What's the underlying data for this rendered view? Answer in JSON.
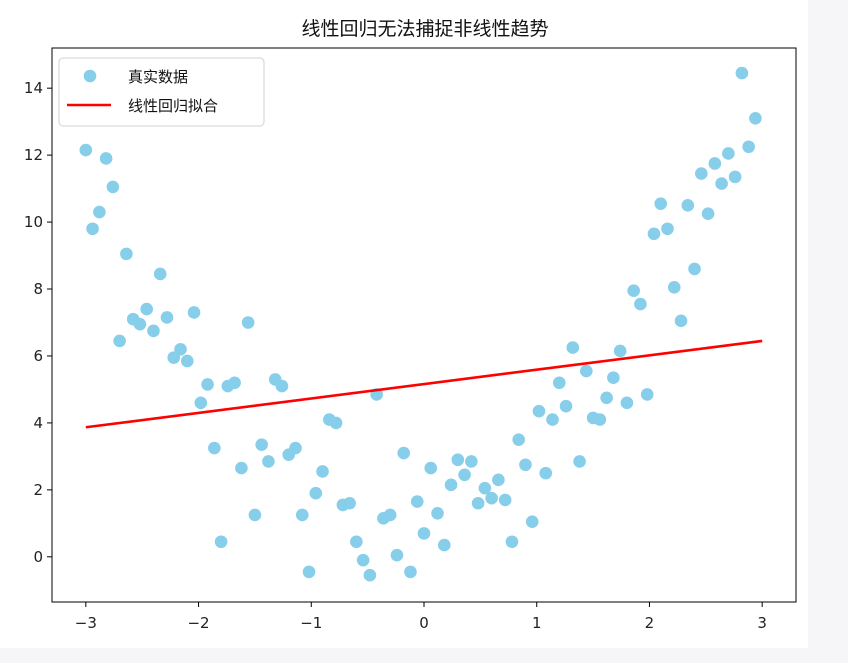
{
  "chart_data": {
    "type": "scatter",
    "title": "线性回归无法捕捉非线性趋势",
    "xlabel": "",
    "ylabel": "",
    "xlim": [
      -3.3,
      3.3
    ],
    "ylim": [
      -1.35,
      15.2
    ],
    "xticks": [
      -3,
      -2,
      -1,
      0,
      1,
      2,
      3
    ],
    "yticks": [
      0,
      2,
      4,
      6,
      8,
      10,
      12,
      14
    ],
    "grid": false,
    "legend_position": "top-left",
    "colors": {
      "points": "#87ceeb",
      "line": "#ff0000"
    },
    "series": [
      {
        "name": "真实数据",
        "kind": "scatter",
        "points": [
          [
            -3.0,
            12.15
          ],
          [
            -2.94,
            9.8
          ],
          [
            -2.88,
            10.3
          ],
          [
            -2.82,
            11.9
          ],
          [
            -2.76,
            11.05
          ],
          [
            -2.7,
            6.45
          ],
          [
            -2.64,
            9.05
          ],
          [
            -2.58,
            7.1
          ],
          [
            -2.52,
            6.95
          ],
          [
            -2.46,
            7.4
          ],
          [
            -2.4,
            6.75
          ],
          [
            -2.34,
            8.45
          ],
          [
            -2.28,
            7.15
          ],
          [
            -2.22,
            5.95
          ],
          [
            -2.16,
            6.2
          ],
          [
            -2.1,
            5.85
          ],
          [
            -2.04,
            7.3
          ],
          [
            -1.98,
            4.6
          ],
          [
            -1.92,
            5.15
          ],
          [
            -1.86,
            3.25
          ],
          [
            -1.8,
            0.45
          ],
          [
            -1.74,
            5.1
          ],
          [
            -1.68,
            5.2
          ],
          [
            -1.62,
            2.65
          ],
          [
            -1.56,
            7.0
          ],
          [
            -1.5,
            1.25
          ],
          [
            -1.44,
            3.35
          ],
          [
            -1.38,
            2.85
          ],
          [
            -1.32,
            5.3
          ],
          [
            -1.26,
            5.1
          ],
          [
            -1.2,
            3.05
          ],
          [
            -1.14,
            3.25
          ],
          [
            -1.08,
            1.25
          ],
          [
            -1.02,
            -0.45
          ],
          [
            -0.96,
            1.9
          ],
          [
            -0.9,
            2.55
          ],
          [
            -0.84,
            4.1
          ],
          [
            -0.78,
            4.0
          ],
          [
            -0.72,
            1.55
          ],
          [
            -0.66,
            1.6
          ],
          [
            -0.6,
            0.45
          ],
          [
            -0.54,
            -0.1
          ],
          [
            -0.48,
            -0.55
          ],
          [
            -0.42,
            4.85
          ],
          [
            -0.36,
            1.15
          ],
          [
            -0.3,
            1.25
          ],
          [
            -0.24,
            0.05
          ],
          [
            -0.18,
            3.1
          ],
          [
            -0.12,
            -0.45
          ],
          [
            -0.06,
            1.65
          ],
          [
            0.0,
            0.7
          ],
          [
            0.06,
            2.65
          ],
          [
            0.12,
            1.3
          ],
          [
            0.18,
            0.35
          ],
          [
            0.24,
            2.15
          ],
          [
            0.3,
            2.9
          ],
          [
            0.36,
            2.45
          ],
          [
            0.42,
            2.85
          ],
          [
            0.48,
            1.6
          ],
          [
            0.54,
            2.05
          ],
          [
            0.6,
            1.75
          ],
          [
            0.66,
            2.3
          ],
          [
            0.72,
            1.7
          ],
          [
            0.78,
            0.45
          ],
          [
            0.84,
            3.5
          ],
          [
            0.9,
            2.75
          ],
          [
            0.96,
            1.05
          ],
          [
            1.02,
            4.35
          ],
          [
            1.08,
            2.5
          ],
          [
            1.14,
            4.1
          ],
          [
            1.2,
            5.2
          ],
          [
            1.26,
            4.5
          ],
          [
            1.32,
            6.25
          ],
          [
            1.38,
            2.85
          ],
          [
            1.44,
            5.55
          ],
          [
            1.5,
            4.15
          ],
          [
            1.56,
            4.1
          ],
          [
            1.62,
            4.75
          ],
          [
            1.68,
            5.35
          ],
          [
            1.74,
            6.15
          ],
          [
            1.8,
            4.6
          ],
          [
            1.86,
            7.95
          ],
          [
            1.92,
            7.55
          ],
          [
            1.98,
            4.85
          ],
          [
            2.04,
            9.65
          ],
          [
            2.1,
            10.55
          ],
          [
            2.16,
            9.8
          ],
          [
            2.22,
            8.05
          ],
          [
            2.28,
            7.05
          ],
          [
            2.34,
            10.5
          ],
          [
            2.4,
            8.6
          ],
          [
            2.46,
            11.45
          ],
          [
            2.52,
            10.25
          ],
          [
            2.58,
            11.75
          ],
          [
            2.64,
            11.15
          ],
          [
            2.7,
            12.05
          ],
          [
            2.76,
            11.35
          ],
          [
            2.82,
            14.45
          ],
          [
            2.88,
            12.25
          ],
          [
            2.94,
            13.1
          ]
        ]
      },
      {
        "name": "线性回归拟合",
        "kind": "line",
        "points": [
          [
            -3.0,
            3.87
          ],
          [
            3.0,
            6.45
          ]
        ]
      }
    ]
  }
}
